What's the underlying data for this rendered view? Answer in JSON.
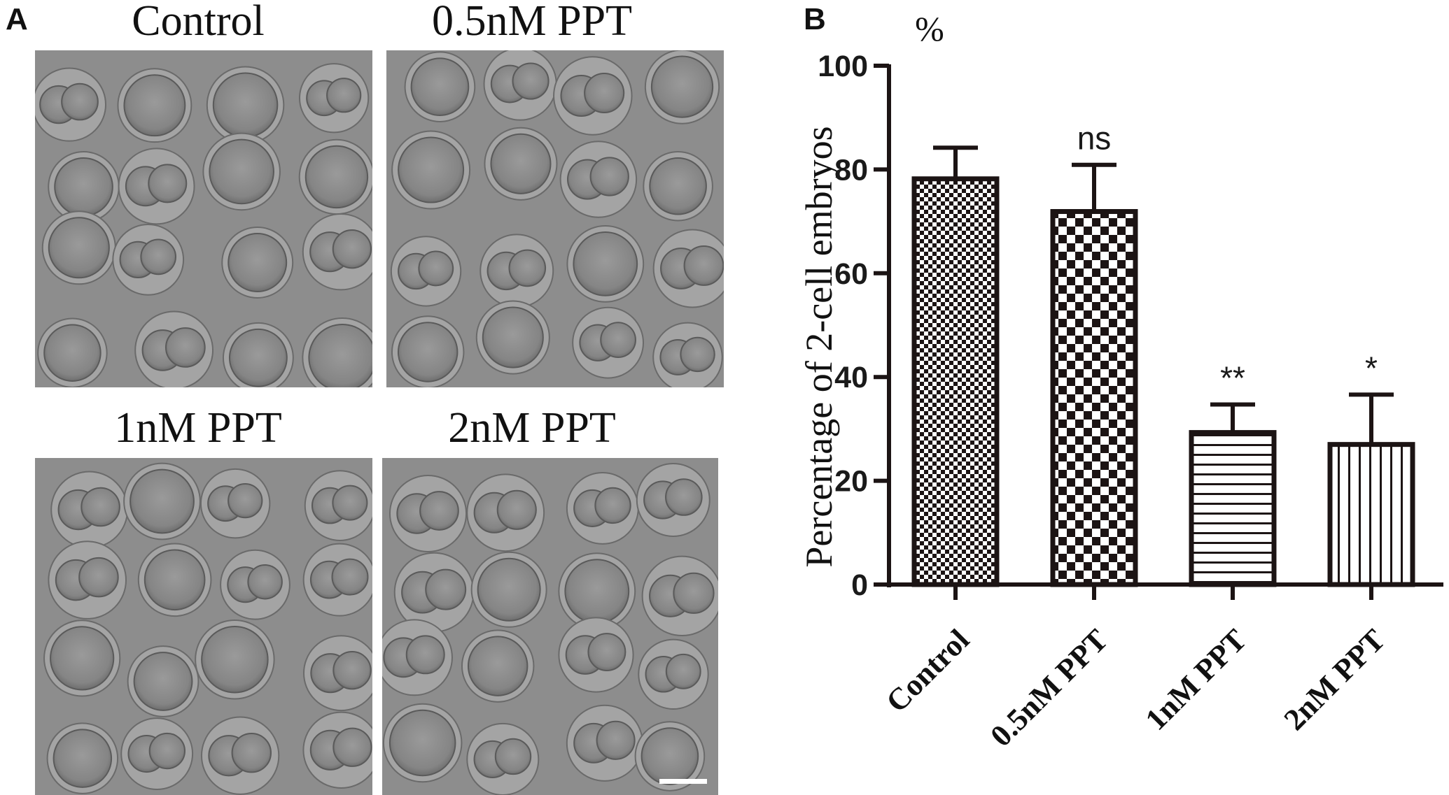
{
  "panel_a": {
    "letter": "A",
    "images": [
      {
        "title": "Control"
      },
      {
        "title": "0.5nM PPT"
      },
      {
        "title": "1nM PPT"
      },
      {
        "title": "2nM PPT"
      }
    ]
  },
  "panel_b": {
    "letter": "B"
  },
  "chart_data": {
    "type": "bar",
    "categories": [
      "Control",
      "0.5nM PPT",
      "1nM PPT",
      "2nM PPT"
    ],
    "values": [
      78.2,
      71.9,
      29.3,
      27.0
    ],
    "errors": [
      6.0,
      9.0,
      5.4,
      9.6
    ],
    "significance": [
      "",
      "ns",
      "**",
      "*"
    ],
    "patterns": [
      "fine-checker",
      "checker",
      "horizontal-lines",
      "vertical-lines"
    ],
    "ylabel": "Percentage of 2-cell embryos",
    "yunit": "%",
    "ylim": [
      0,
      100
    ],
    "yticks": [
      0,
      20,
      40,
      60,
      80,
      100
    ],
    "grid": false,
    "colors": {
      "bar_stroke": "#1c1414",
      "pattern_ink": "#1c1414",
      "axis": "#1c1414"
    }
  }
}
